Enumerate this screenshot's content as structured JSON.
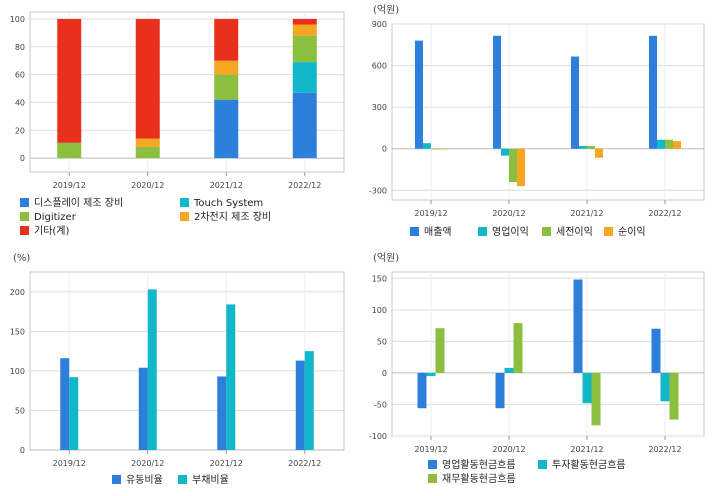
{
  "colors": {
    "blue": "#2d7fdc",
    "cyan": "#12b7c9",
    "green": "#8cbf3f",
    "orange": "#f5a623",
    "red": "#e8301c",
    "grid": "#dddddd",
    "axis": "#999999"
  },
  "chart_data": [
    {
      "type": "bar",
      "stacked": true,
      "unit": "",
      "categories": [
        "2019/12",
        "2020/12",
        "2021/12",
        "2022/12"
      ],
      "ylim": [
        -10,
        105
      ],
      "yticks": [
        0,
        20,
        40,
        60,
        80,
        100
      ],
      "series": [
        {
          "name": "디스플레이 제조 장비",
          "color": "#2d7fdc",
          "values": [
            0,
            0,
            42,
            47
          ]
        },
        {
          "name": "Touch System",
          "color": "#12b7c9",
          "values": [
            0,
            0,
            0,
            22
          ]
        },
        {
          "name": "Digitizer",
          "color": "#8cbf3f",
          "values": [
            11,
            8,
            18,
            19
          ]
        },
        {
          "name": "2차전지 제조 장비",
          "color": "#f5a623",
          "values": [
            0,
            6,
            10,
            8
          ]
        },
        {
          "name": "기타(계)",
          "color": "#e8301c",
          "values": [
            89,
            86,
            30,
            4
          ]
        }
      ]
    },
    {
      "type": "bar",
      "stacked": false,
      "unit": "(억원)",
      "categories": [
        "2019/12",
        "2020/12",
        "2021/12",
        "2022/12"
      ],
      "ylim": [
        -370,
        900
      ],
      "yticks": [
        -300,
        0,
        300,
        600,
        900
      ],
      "series": [
        {
          "name": "매출액",
          "color": "#2d7fdc",
          "values": [
            780,
            815,
            665,
            815
          ]
        },
        {
          "name": "영업이익",
          "color": "#12b7c9",
          "values": [
            40,
            -50,
            20,
            65
          ]
        },
        {
          "name": "세전이익",
          "color": "#8cbf3f",
          "values": [
            -5,
            -240,
            20,
            65
          ]
        },
        {
          "name": "순이익",
          "color": "#f5a623",
          "values": [
            -5,
            -270,
            -65,
            55
          ]
        }
      ]
    },
    {
      "type": "bar",
      "stacked": false,
      "unit": "(%)",
      "categories": [
        "2019/12",
        "2020/12",
        "2021/12",
        "2022/12"
      ],
      "ylim": [
        0,
        225
      ],
      "yticks": [
        0,
        50,
        100,
        150,
        200
      ],
      "series": [
        {
          "name": "유동비율",
          "color": "#2d7fdc",
          "values": [
            116,
            104,
            93,
            113
          ]
        },
        {
          "name": "부채비율",
          "color": "#12b7c9",
          "values": [
            92,
            203,
            184,
            125
          ]
        }
      ]
    },
    {
      "type": "bar",
      "stacked": false,
      "unit": "(억원)",
      "categories": [
        "2019/12",
        "2020/12",
        "2021/12",
        "2022/12"
      ],
      "ylim": [
        -100,
        160
      ],
      "yticks": [
        -100,
        -50,
        0,
        50,
        100,
        150
      ],
      "series": [
        {
          "name": "영업활동현금흐름",
          "color": "#2d7fdc",
          "values": [
            -56,
            -56,
            148,
            70
          ]
        },
        {
          "name": "투자활동현금흐름",
          "color": "#12b7c9",
          "values": [
            -5,
            8,
            -48,
            -45
          ]
        },
        {
          "name": "재무활동현금흐름",
          "color": "#8cbf3f",
          "values": [
            71,
            79,
            -83,
            -74
          ]
        }
      ]
    }
  ]
}
